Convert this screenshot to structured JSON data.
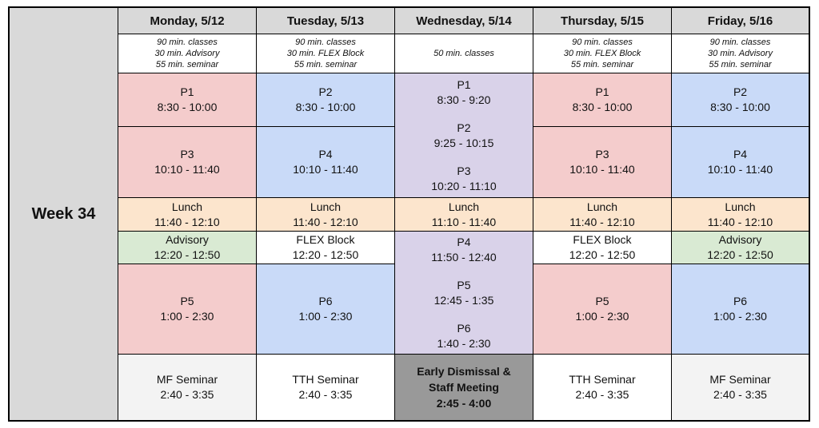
{
  "week_label": "Week 34",
  "days": [
    {
      "header": "Monday, 5/12",
      "notes": [
        "90 min. classes",
        "30 min. Advisory",
        "55 min. seminar"
      ]
    },
    {
      "header": "Tuesday, 5/13",
      "notes": [
        "90 min. classes",
        "30 min. FLEX Block",
        "55 min. seminar"
      ]
    },
    {
      "header": "Wednesday, 5/14",
      "notes": [
        "50 min. classes"
      ]
    },
    {
      "header": "Thursday, 5/15",
      "notes": [
        "90 min. classes",
        "30 min. FLEX Block",
        "55 min. seminar"
      ]
    },
    {
      "header": "Friday, 5/16",
      "notes": [
        "90 min. classes",
        "30 min. Advisory",
        "55 min. seminar"
      ]
    }
  ],
  "monday": {
    "p1": {
      "name": "P1",
      "time": "8:30 - 10:00"
    },
    "p3": {
      "name": "P3",
      "time": "10:10 - 11:40"
    },
    "lunch": {
      "name": "Lunch",
      "time": "11:40 - 12:10"
    },
    "advisory": {
      "name": "Advisory",
      "time": "12:20 - 12:50"
    },
    "p5": {
      "name": "P5",
      "time": "1:00 - 2:30"
    },
    "seminar": {
      "name": "MF Seminar",
      "time": "2:40 - 3:35"
    }
  },
  "tuesday": {
    "p2": {
      "name": "P2",
      "time": "8:30 - 10:00"
    },
    "p4": {
      "name": "P4",
      "time": "10:10 - 11:40"
    },
    "lunch": {
      "name": "Lunch",
      "time": "11:40 - 12:10"
    },
    "flex": {
      "name": "FLEX Block",
      "time": "12:20 - 12:50"
    },
    "p6": {
      "name": "P6",
      "time": "1:00 - 2:30"
    },
    "seminar": {
      "name": "TTH Seminar",
      "time": "2:40 - 3:35"
    }
  },
  "wednesday": {
    "p1": {
      "name": "P1",
      "time": "8:30 - 9:20"
    },
    "p2": {
      "name": "P2",
      "time": "9:25 - 10:15"
    },
    "p3": {
      "name": "P3",
      "time": "10:20 - 11:10"
    },
    "lunch": {
      "name": "Lunch",
      "time": "11:10 - 11:40"
    },
    "p4": {
      "name": "P4",
      "time": "11:50 - 12:40"
    },
    "p5": {
      "name": "P5",
      "time": "12:45 - 1:35"
    },
    "p6": {
      "name": "P6",
      "time": "1:40 - 2:30"
    },
    "dismissal": {
      "line1": "Early Dismissal &",
      "line2": "Staff Meeting",
      "time": "2:45 - 4:00"
    }
  },
  "thursday": {
    "p1": {
      "name": "P1",
      "time": "8:30 - 10:00"
    },
    "p3": {
      "name": "P3",
      "time": "10:10 - 11:40"
    },
    "lunch": {
      "name": "Lunch",
      "time": "11:40 - 12:10"
    },
    "flex": {
      "name": "FLEX Block",
      "time": "12:20 - 12:50"
    },
    "p5": {
      "name": "P5",
      "time": "1:00 - 2:30"
    },
    "seminar": {
      "name": "TTH Seminar",
      "time": "2:40 - 3:35"
    }
  },
  "friday": {
    "p2": {
      "name": "P2",
      "time": "8:30 - 10:00"
    },
    "p4": {
      "name": "P4",
      "time": "10:10 - 11:40"
    },
    "lunch": {
      "name": "Lunch",
      "time": "11:40 - 12:10"
    },
    "advisory": {
      "name": "Advisory",
      "time": "12:20 - 12:50"
    },
    "p6": {
      "name": "P6",
      "time": "1:00 - 2:30"
    },
    "seminar": {
      "name": "MF Seminar",
      "time": "2:40 - 3:35"
    }
  }
}
